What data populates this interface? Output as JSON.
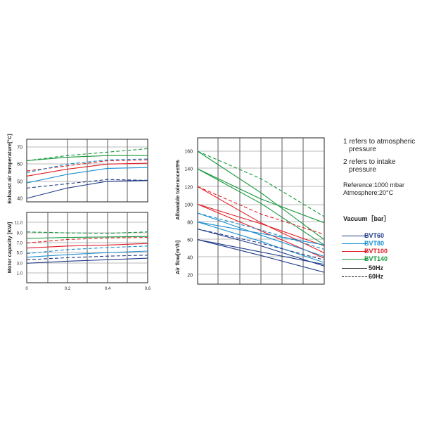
{
  "notes": {
    "note1_line1": "1 refers to atmospheric",
    "note1_line2": "pressure",
    "note2_line1": "2 refers to intake",
    "note2_line2": "pressure",
    "reference": "Reference:1000 mbar",
    "atmosphere": "Atmosphere:20°C"
  },
  "legend": {
    "title": "Vacuum［bar］",
    "items": [
      {
        "label": "BVT60",
        "color": "#1f3a8a",
        "style": "solid"
      },
      {
        "label": "BVT80",
        "color": "#1b8fd0",
        "style": "solid"
      },
      {
        "label": "BVT100",
        "color": "#e01b24",
        "style": "solid"
      },
      {
        "label": "BVT140",
        "color": "#13983a",
        "style": "solid"
      },
      {
        "label": "50Hz",
        "color": "#222222",
        "style": "solid"
      },
      {
        "label": "60Hz",
        "color": "#222222",
        "style": "dashed"
      }
    ]
  },
  "chart_data": [
    {
      "type": "line",
      "ylabel": "Exhaust air temperature[°C]",
      "yticks": [
        "70",
        "60",
        "50",
        "40"
      ],
      "ylim": [
        40,
        70
      ],
      "xlim": [
        0,
        0.6
      ],
      "series": [
        {
          "name": "BVT140",
          "color": "#13983a",
          "style": "solid",
          "x": [
            0,
            0.2,
            0.4,
            0.6
          ],
          "y": [
            62,
            64,
            65,
            65
          ]
        },
        {
          "name": "BVT140",
          "color": "#13983a",
          "style": "dashed",
          "x": [
            0,
            0.2,
            0.4,
            0.6
          ],
          "y": [
            62,
            65,
            67,
            69
          ]
        },
        {
          "name": "BVT100",
          "color": "#e01b24",
          "style": "solid",
          "x": [
            0,
            0.2,
            0.4,
            0.6
          ],
          "y": [
            53,
            57,
            60,
            60.5
          ]
        },
        {
          "name": "BVT100",
          "color": "#e01b24",
          "style": "dashed",
          "x": [
            0,
            0.2,
            0.4,
            0.6
          ],
          "y": [
            56,
            59,
            62,
            62.5
          ]
        },
        {
          "name": "BVT80",
          "color": "#1b8fd0",
          "style": "solid",
          "x": [
            0,
            0.2,
            0.4,
            0.6
          ],
          "y": [
            49,
            54,
            57.5,
            58
          ]
        },
        {
          "name": "BVT80",
          "color": "#1b8fd0",
          "style": "dashed",
          "x": [
            0,
            0.2,
            0.4,
            0.6
          ],
          "y": [
            55,
            60,
            62.5,
            63
          ]
        },
        {
          "name": "BVT60",
          "color": "#1f3a8a",
          "style": "solid",
          "x": [
            0,
            0.2,
            0.4,
            0.6
          ],
          "y": [
            40,
            46,
            50,
            50.5
          ]
        },
        {
          "name": "BVT60",
          "color": "#1f3a8a",
          "style": "dashed",
          "x": [
            0,
            0.2,
            0.4,
            0.6
          ],
          "y": [
            46,
            48.5,
            51,
            50.5
          ]
        }
      ]
    },
    {
      "type": "line",
      "ylabel": "Motor capacity [KW]",
      "yticks": [
        "11.0",
        "9.0",
        "7.0",
        "5.0",
        "3.0",
        "1.0"
      ],
      "ylim": [
        0,
        12
      ],
      "xticks": [
        "0",
        "0.2",
        "0.4",
        "0.6"
      ],
      "xlim": [
        0,
        0.6
      ],
      "series": [
        {
          "name": "BVT140",
          "color": "#13983a",
          "style": "solid",
          "x": [
            0,
            0.2,
            0.4,
            0.6
          ],
          "y": [
            7.8,
            8.0,
            8.1,
            8.2
          ]
        },
        {
          "name": "BVT140",
          "color": "#13983a",
          "style": "dashed",
          "x": [
            0,
            0.2,
            0.4,
            0.6
          ],
          "y": [
            9.1,
            8.9,
            8.8,
            9.1
          ]
        },
        {
          "name": "BVT100",
          "color": "#e01b24",
          "style": "solid",
          "x": [
            0,
            0.2,
            0.4,
            0.6
          ],
          "y": [
            5.9,
            6.3,
            6.5,
            6.8
          ]
        },
        {
          "name": "BVT100",
          "color": "#e01b24",
          "style": "dashed",
          "x": [
            0,
            0.2,
            0.4,
            0.6
          ],
          "y": [
            6.9,
            7.6,
            7.9,
            8.0
          ]
        },
        {
          "name": "BVT80",
          "color": "#1b8fd0",
          "style": "solid",
          "x": [
            0,
            0.2,
            0.4,
            0.6
          ],
          "y": [
            4.1,
            4.6,
            5.0,
            5.3
          ]
        },
        {
          "name": "BVT80",
          "color": "#1b8fd0",
          "style": "dashed",
          "x": [
            0,
            0.2,
            0.4,
            0.6
          ],
          "y": [
            4.8,
            5.6,
            6.0,
            6.3
          ]
        },
        {
          "name": "BVT60",
          "color": "#1f3a8a",
          "style": "solid",
          "x": [
            0,
            0.2,
            0.4,
            0.6
          ],
          "y": [
            2.9,
            3.3,
            3.6,
            3.9
          ]
        },
        {
          "name": "BVT60",
          "color": "#1f3a8a",
          "style": "dashed",
          "x": [
            0,
            0.2,
            0.4,
            0.6
          ],
          "y": [
            3.6,
            4.0,
            4.3,
            4.5
          ]
        }
      ]
    },
    {
      "type": "line",
      "ylabel": "Allowable tolerance±5%",
      "ylabel2": "Air flow[m³/h]",
      "yticks": [
        "160",
        "140",
        "120",
        "100",
        "80",
        "60",
        "40",
        "20"
      ],
      "ylim": [
        10,
        170
      ],
      "xlim": [
        0,
        0.6
      ],
      "series": [
        {
          "name": "BVT140",
          "color": "#13983a",
          "style": "dashed",
          "x": [
            0,
            0.3,
            0.6
          ],
          "y": [
            160,
            129,
            86
          ]
        },
        {
          "name": "BVT140",
          "color": "#13983a",
          "style": "solid",
          "x": [
            0,
            0.3,
            0.6
          ],
          "y": [
            160,
            113,
            60
          ]
        },
        {
          "name": "BVT140",
          "color": "#13983a",
          "style": "solid",
          "x": [
            0,
            0.3,
            0.6
          ],
          "y": [
            140,
            101,
            54
          ]
        },
        {
          "name": "BVT140",
          "color": "#13983a",
          "style": "solid",
          "x": [
            0,
            0.3,
            0.6
          ],
          "y": [
            140,
            106,
            79
          ]
        },
        {
          "name": "BVT100",
          "color": "#e01b24",
          "style": "dashed",
          "x": [
            0,
            0.3,
            0.6
          ],
          "y": [
            120,
            89,
            66
          ]
        },
        {
          "name": "BVT100",
          "color": "#e01b24",
          "style": "solid",
          "x": [
            0,
            0.3,
            0.6
          ],
          "y": [
            120,
            79,
            45
          ]
        },
        {
          "name": "BVT100",
          "color": "#e01b24",
          "style": "solid",
          "x": [
            0,
            0.3,
            0.6
          ],
          "y": [
            100,
            78,
            53
          ]
        },
        {
          "name": "BVT100",
          "color": "#e01b24",
          "style": "solid",
          "x": [
            0,
            0.3,
            0.6
          ],
          "y": [
            100,
            70,
            39
          ]
        },
        {
          "name": "BVT80",
          "color": "#1b8fd0",
          "style": "dashed",
          "x": [
            0,
            0.3,
            0.6
          ],
          "y": [
            90,
            71,
            49
          ]
        },
        {
          "name": "BVT80",
          "color": "#1b8fd0",
          "style": "solid",
          "x": [
            0,
            0.3,
            0.6
          ],
          "y": [
            90,
            65,
            41
          ]
        },
        {
          "name": "BVT80",
          "color": "#1b8fd0",
          "style": "solid",
          "x": [
            0,
            0.3,
            0.6
          ],
          "y": [
            80,
            67,
            54
          ]
        },
        {
          "name": "BVT80",
          "color": "#1b8fd0",
          "style": "solid",
          "x": [
            0,
            0.3,
            0.6
          ],
          "y": [
            80,
            58,
            34
          ]
        },
        {
          "name": "BVT60",
          "color": "#1f3a8a",
          "style": "dashed",
          "x": [
            0,
            0.3,
            0.6
          ],
          "y": [
            72,
            56,
            37
          ]
        },
        {
          "name": "BVT60",
          "color": "#1f3a8a",
          "style": "solid",
          "x": [
            0,
            0.3,
            0.6
          ],
          "y": [
            72,
            53,
            30
          ]
        },
        {
          "name": "BVT60",
          "color": "#1f3a8a",
          "style": "solid",
          "x": [
            0,
            0.3,
            0.6
          ],
          "y": [
            60,
            46,
            32
          ]
        },
        {
          "name": "BVT60",
          "color": "#1f3a8a",
          "style": "solid",
          "x": [
            0,
            0.3,
            0.6
          ],
          "y": [
            60,
            42,
            23
          ]
        }
      ]
    }
  ]
}
